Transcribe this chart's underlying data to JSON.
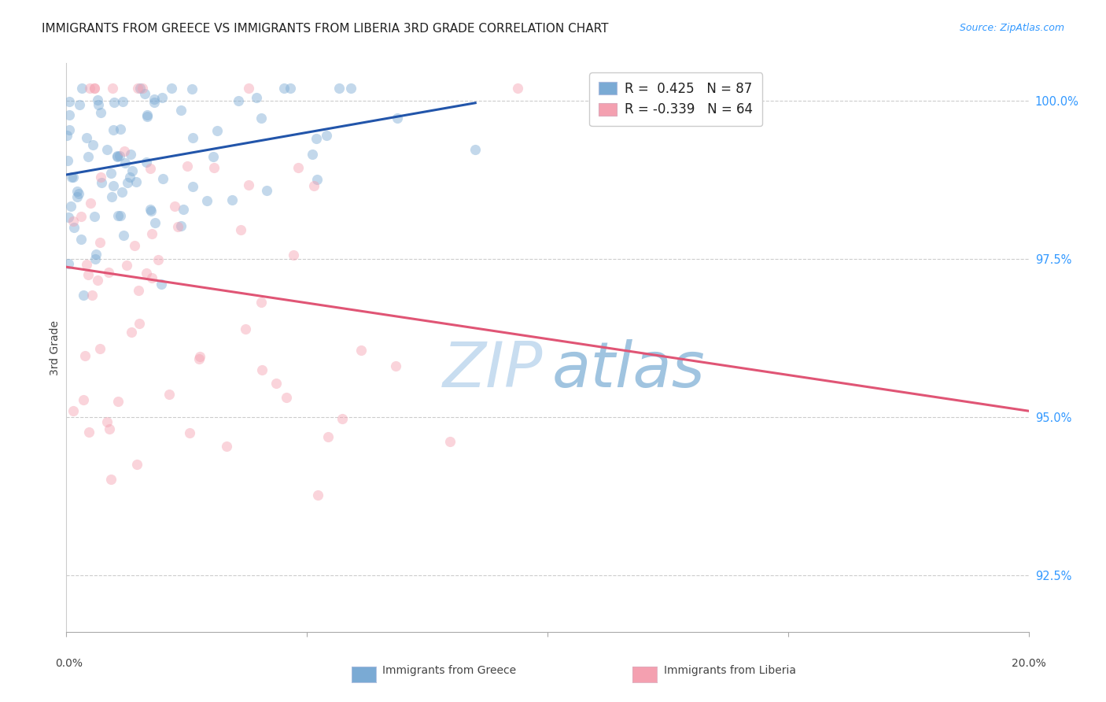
{
  "title": "IMMIGRANTS FROM GREECE VS IMMIGRANTS FROM LIBERIA 3RD GRADE CORRELATION CHART",
  "source": "Source: ZipAtlas.com",
  "ylabel": "3rd Grade",
  "ytick_labels": [
    "92.5%",
    "95.0%",
    "97.5%",
    "100.0%"
  ],
  "ytick_values": [
    0.925,
    0.95,
    0.975,
    1.0
  ],
  "xlim": [
    0.0,
    0.2
  ],
  "ylim": [
    0.916,
    1.006
  ],
  "greece_R": 0.425,
  "greece_N": 87,
  "liberia_R": -0.339,
  "liberia_N": 64,
  "greece_color": "#7aaad4",
  "liberia_color": "#f4a0b0",
  "greece_line_color": "#2255aa",
  "liberia_line_color": "#e05575",
  "background_color": "#ffffff",
  "title_fontsize": 11,
  "source_fontsize": 9,
  "axis_label_fontsize": 10,
  "legend_fontsize": 12,
  "marker_size": 90,
  "marker_alpha": 0.45,
  "seed": 12
}
